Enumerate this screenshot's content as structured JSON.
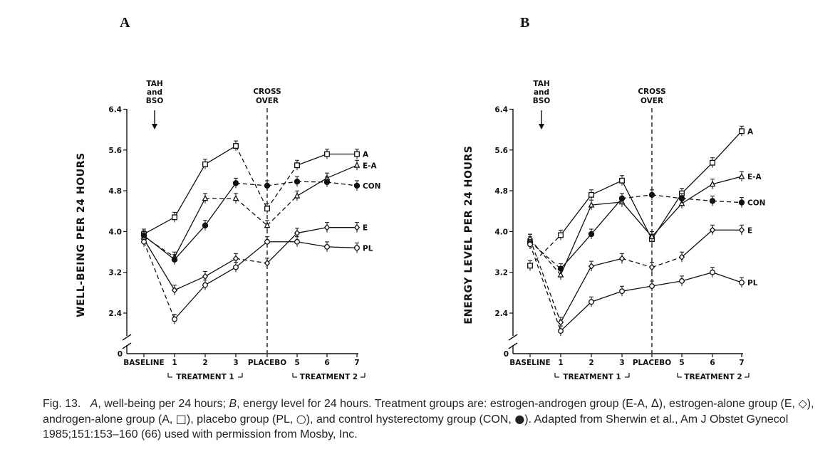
{
  "figure": {
    "caption": {
      "fig_label": "Fig. 13.",
      "segments": [
        {
          "t": "A",
          "i": true
        },
        {
          "t": ", well-being per 24 hours; "
        },
        {
          "t": "B",
          "i": true
        },
        {
          "t": ", energy level for 24 hours. Treatment groups are: estrogen-androgen group (E-A, "
        },
        {
          "t": "Δ",
          "m": true
        },
        {
          "t": "), estrogen-alone group (E, "
        },
        {
          "t": "◇",
          "m": true
        },
        {
          "t": "), androgen-alone group (A, "
        },
        {
          "t": "□",
          "m": true
        },
        {
          "t": "), placebo group (PL, "
        },
        {
          "t": "○",
          "m": true
        },
        {
          "t": "), and control hysterectomy group (CON, "
        },
        {
          "t": "●",
          "m": true
        },
        {
          "t": "). Adapted from Sherwin et al., Am J Obstet Gynecol 1985;151:153–160 (66) used with permission from Mosby, Inc."
        }
      ]
    }
  },
  "chart_data": [
    {
      "panel": "A",
      "type": "line",
      "ylabel": "WELL-BEING PER 24 HOURS",
      "xlabel": "",
      "ylim": [
        0,
        6.4
      ],
      "ytick_labels": [
        "0",
        "2.4",
        "3.2",
        "4.0",
        "4.8",
        "5.6",
        "6.4"
      ],
      "categories": [
        "BASELINE",
        "1",
        "2",
        "3",
        "PLACEBO",
        "5",
        "6",
        "7"
      ],
      "period_labels": [
        "TREATMENT 1",
        "TREATMENT 2"
      ],
      "annotations": {
        "tah": [
          "TAH",
          "and",
          "BSO"
        ],
        "crossover": [
          "CROSS",
          "OVER"
        ]
      },
      "series": [
        {
          "name": "A",
          "label": "A",
          "marker": "square",
          "values": [
            3.95,
            4.28,
            5.32,
            5.68,
            4.45,
            5.3,
            5.52,
            5.52
          ],
          "dash": [
            0,
            0,
            0,
            1,
            1,
            0,
            0
          ]
        },
        {
          "name": "E-A",
          "label": "E-A",
          "marker": "triangle",
          "values": [
            3.9,
            3.5,
            4.65,
            4.65,
            4.12,
            4.7,
            5.05,
            5.3
          ],
          "dash": [
            1,
            0,
            1,
            1,
            1,
            0,
            0
          ]
        },
        {
          "name": "CON",
          "label": "CON",
          "marker": "filled",
          "values": [
            3.92,
            3.45,
            4.12,
            4.95,
            4.9,
            4.98,
            4.97,
            4.9
          ],
          "dash": [
            0,
            0,
            0,
            1,
            1,
            1,
            1
          ]
        },
        {
          "name": "E",
          "label": "E",
          "marker": "diamond",
          "values": [
            3.85,
            2.85,
            3.12,
            3.47,
            3.38,
            3.97,
            4.08,
            4.08
          ],
          "dash": [
            0,
            0,
            0,
            1,
            0,
            0,
            0
          ]
        },
        {
          "name": "PL",
          "label": "PL",
          "marker": "circle",
          "values": [
            3.8,
            2.28,
            2.95,
            3.3,
            3.8,
            3.8,
            3.7,
            3.68
          ],
          "dash": [
            1,
            0,
            0,
            0,
            0,
            0,
            0
          ]
        }
      ]
    },
    {
      "panel": "B",
      "type": "line",
      "ylabel": "ENERGY LEVEL PER 24 HOURS",
      "xlabel": "",
      "ylim": [
        0,
        6.4
      ],
      "ytick_labels": [
        "0",
        "2.4",
        "3.2",
        "4.0",
        "4.8",
        "5.6",
        "6.4"
      ],
      "categories": [
        "BASELINE",
        "1",
        "2",
        "3",
        "PLACEBO",
        "5",
        "6",
        "7"
      ],
      "period_labels": [
        "TREATMENT 1",
        "TREATMENT 2"
      ],
      "annotations": {
        "tah": [
          "TAH",
          "and",
          "BSO"
        ],
        "crossover": [
          "CROSS",
          "OVER"
        ]
      },
      "series": [
        {
          "name": "A",
          "label": "A",
          "marker": "square",
          "values": [
            3.33,
            3.93,
            4.72,
            5.0,
            3.85,
            4.75,
            5.35,
            5.97
          ],
          "dash": [
            1,
            0,
            0,
            0,
            0,
            0,
            0
          ]
        },
        {
          "name": "E-A",
          "label": "E-A",
          "marker": "triangle",
          "values": [
            3.85,
            3.15,
            4.52,
            4.58,
            3.9,
            4.55,
            4.93,
            5.08
          ],
          "dash": [
            1,
            0,
            0,
            0,
            0,
            0,
            0
          ]
        },
        {
          "name": "CON",
          "label": "CON",
          "marker": "filled",
          "values": [
            3.8,
            3.27,
            3.95,
            4.65,
            4.72,
            4.65,
            4.6,
            4.57
          ],
          "dash": [
            1,
            0,
            0,
            1,
            1,
            1,
            1
          ]
        },
        {
          "name": "E",
          "label": "E",
          "marker": "diamond",
          "values": [
            3.85,
            2.22,
            3.32,
            3.47,
            3.3,
            3.5,
            4.03,
            4.03
          ],
          "dash": [
            1,
            0,
            0,
            1,
            1,
            0,
            0
          ]
        },
        {
          "name": "PL",
          "label": "PL",
          "marker": "circle",
          "values": [
            3.75,
            2.05,
            2.62,
            2.83,
            2.93,
            3.03,
            3.2,
            3.0
          ],
          "dash": [
            1,
            0,
            0,
            0,
            0,
            0,
            0
          ]
        }
      ]
    }
  ]
}
